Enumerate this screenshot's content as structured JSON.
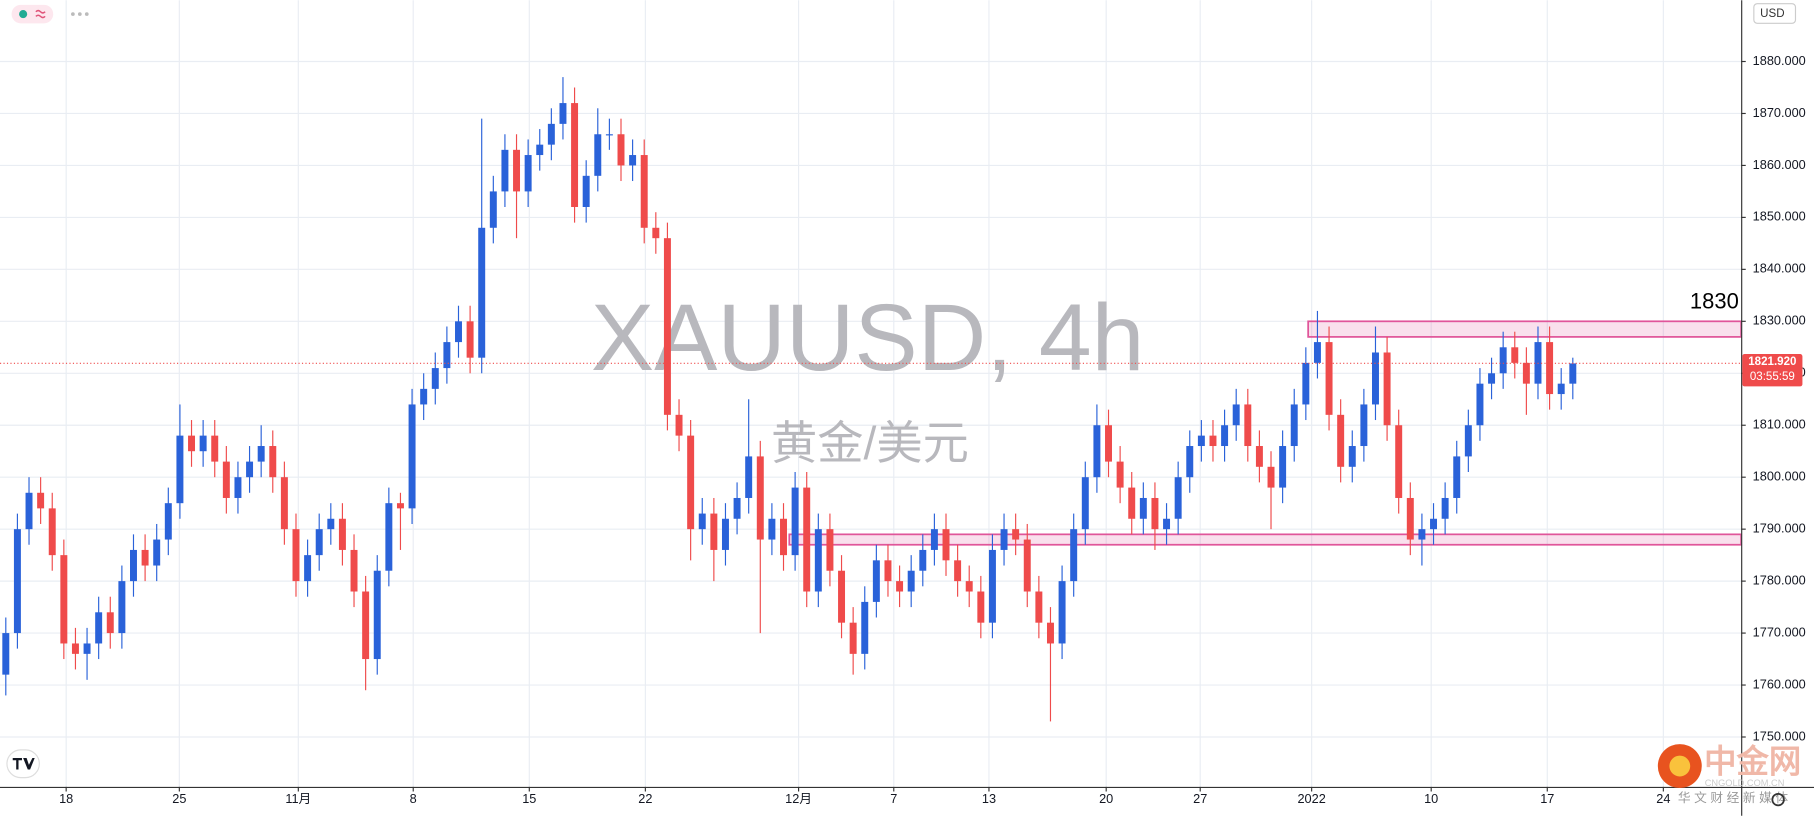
{
  "chart_data": {
    "type": "candlestick",
    "title": "XAUUSD, 4h",
    "subtitle": "黄金/美元",
    "currency": "USD",
    "annotation": "1830",
    "up_color": "#2a62d9",
    "down_color": "#ef4b4b",
    "xlim": [
      0,
      150
    ],
    "ylim": [
      1740.4,
      1891.8
    ],
    "xticks": [
      {
        "value": 5.7,
        "label": "18"
      },
      {
        "value": 15.45,
        "label": "25"
      },
      {
        "value": 25.7,
        "label": "11月"
      },
      {
        "value": 35.6,
        "label": "8"
      },
      {
        "value": 45.6,
        "label": "15"
      },
      {
        "value": 55.6,
        "label": "22"
      },
      {
        "value": 68.8,
        "label": "12月"
      },
      {
        "value": 77,
        "label": "7"
      },
      {
        "value": 85.2,
        "label": "13"
      },
      {
        "value": 95.3,
        "label": "20"
      },
      {
        "value": 103.4,
        "label": "27"
      },
      {
        "value": 113,
        "label": "2022"
      },
      {
        "value": 123.3,
        "label": "10"
      },
      {
        "value": 133.3,
        "label": "17"
      },
      {
        "value": 143.3,
        "label": "24"
      }
    ],
    "yticks": [
      {
        "value": 1750,
        "label": "1750.000"
      },
      {
        "value": 1760,
        "label": "1760.000"
      },
      {
        "value": 1770,
        "label": "1770.000"
      },
      {
        "value": 1780,
        "label": "1780.000"
      },
      {
        "value": 1790,
        "label": "1790.000"
      },
      {
        "value": 1800,
        "label": "1800.000"
      },
      {
        "value": 1810,
        "label": "1810.000"
      },
      {
        "value": 1820,
        "label": "1820.000"
      },
      {
        "value": 1830,
        "label": "1830.000"
      },
      {
        "value": 1840,
        "label": "1840.000"
      },
      {
        "value": 1850,
        "label": "1850.000"
      },
      {
        "value": 1860,
        "label": "1860.000"
      },
      {
        "value": 1870,
        "label": "1870.000"
      },
      {
        "value": 1880,
        "label": "1880.000"
      }
    ],
    "grid": true,
    "last_price": {
      "value": 1821.92,
      "label": "1821.920"
    },
    "countdown": "03:55:59",
    "zones": [
      {
        "low": 1827,
        "high": 1830,
        "from": 112.7
      },
      {
        "low": 1787,
        "high": 1789,
        "from": 68
      }
    ],
    "zone_color": "#e0559a",
    "x": [
      0.5,
      1.5,
      2.5,
      3.5,
      4.5,
      5.5,
      6.5,
      7.5,
      8.5,
      9.5,
      10.5,
      11.5,
      12.5,
      13.5,
      14.5,
      15.5,
      16.5,
      17.5,
      18.5,
      19.5,
      20.5,
      21.5,
      22.5,
      23.5,
      24.5,
      25.5,
      26.5,
      27.5,
      28.5,
      29.5,
      30.5,
      31.5,
      32.5,
      33.5,
      34.5,
      35.5,
      36.5,
      37.5,
      38.5,
      39.5,
      40.5,
      41.5,
      42.5,
      43.5,
      44.5,
      45.5,
      46.5,
      47.5,
      48.5,
      49.5,
      50.5,
      51.5,
      52.5,
      53.5,
      54.5,
      55.5,
      56.5,
      57.5,
      58.5,
      59.5,
      60.5,
      61.5,
      62.5,
      63.5,
      64.5,
      65.5,
      66.5,
      67.5,
      68.5,
      69.5,
      70.5,
      71.5,
      72.5,
      73.5,
      74.5,
      75.5,
      76.5,
      77.5,
      78.5,
      79.5,
      80.5,
      81.5,
      82.5,
      83.5,
      84.5,
      85.5,
      86.5,
      87.5,
      88.5,
      89.5,
      90.5,
      91.5,
      92.5,
      93.5,
      94.5,
      95.5,
      96.5,
      97.5,
      98.5,
      99.5,
      100.5,
      101.5,
      102.5,
      103.5,
      104.5,
      105.5,
      106.5,
      107.5,
      108.5,
      109.5,
      110.5,
      111.5,
      112.5,
      113.5,
      114.5,
      115.5,
      116.5,
      117.5,
      118.5,
      119.5,
      120.5,
      121.5,
      122.5,
      123.5,
      124.5,
      125.5,
      126.5,
      127.5,
      128.5,
      129.5,
      130.5,
      131.5,
      132.5,
      133.5,
      134.5,
      135.5
    ],
    "open": [
      1762,
      1770,
      1790,
      1797,
      1794,
      1785,
      1768,
      1766,
      1768,
      1774,
      1770,
      1780,
      1786,
      1783,
      1788,
      1795,
      1808,
      1805,
      1808,
      1803,
      1796,
      1800,
      1803,
      1806,
      1800,
      1790,
      1780,
      1785,
      1790,
      1792,
      1786,
      1778,
      1765,
      1782,
      1795,
      1794,
      1814,
      1817,
      1821,
      1826,
      1830,
      1823,
      1848,
      1855,
      1863,
      1855,
      1862,
      1864,
      1868,
      1872,
      1852,
      1858,
      1866,
      1866,
      1860,
      1862,
      1848,
      1846,
      1812,
      1808,
      1790,
      1793,
      1786,
      1792,
      1796,
      1804,
      1788,
      1792,
      1785,
      1798,
      1778,
      1790,
      1782,
      1772,
      1766,
      1776,
      1784,
      1780,
      1778,
      1782,
      1786,
      1790,
      1784,
      1780,
      1778,
      1772,
      1786,
      1790,
      1788,
      1778,
      1772,
      1768,
      1780,
      1790,
      1800,
      1810,
      1803,
      1798,
      1792,
      1796,
      1790,
      1792,
      1800,
      1806,
      1808,
      1806,
      1810,
      1814,
      1806,
      1802,
      1798,
      1806,
      1814,
      1822,
      1826,
      1812,
      1802,
      1806,
      1814,
      1824,
      1810,
      1796,
      1788,
      1790,
      1792,
      1796,
      1804,
      1810,
      1818,
      1820,
      1825,
      1822,
      1818,
      1826,
      1816,
      1818
    ],
    "high": [
      1773,
      1793,
      1800,
      1800,
      1797,
      1788,
      1771,
      1771,
      1777,
      1777,
      1783,
      1789,
      1789,
      1791,
      1798,
      1814,
      1811,
      1811,
      1811,
      1806,
      1803,
      1806,
      1810,
      1809,
      1803,
      1793,
      1788,
      1793,
      1795,
      1795,
      1789,
      1781,
      1785,
      1798,
      1797,
      1817,
      1820,
      1824,
      1829,
      1833,
      1833,
      1869,
      1858,
      1866,
      1866,
      1865,
      1867,
      1871,
      1877,
      1875,
      1861,
      1871,
      1869,
      1869,
      1865,
      1865,
      1851,
      1849,
      1815,
      1811,
      1796,
      1796,
      1795,
      1799,
      1815,
      1807,
      1795,
      1795,
      1801,
      1801,
      1793,
      1793,
      1785,
      1775,
      1779,
      1787,
      1787,
      1783,
      1785,
      1789,
      1793,
      1793,
      1787,
      1783,
      1781,
      1789,
      1793,
      1793,
      1791,
      1781,
      1775,
      1783,
      1793,
      1803,
      1814,
      1813,
      1806,
      1801,
      1799,
      1799,
      1795,
      1803,
      1809,
      1811,
      1811,
      1813,
      1817,
      1817,
      1809,
      1805,
      1809,
      1817,
      1825,
      1832,
      1829,
      1815,
      1809,
      1817,
      1829,
      1827,
      1813,
      1799,
      1793,
      1795,
      1799,
      1807,
      1813,
      1821,
      1823,
      1828,
      1828,
      1825,
      1829,
      1829,
      1821,
      1823
    ],
    "low": [
      1758,
      1767,
      1787,
      1791,
      1782,
      1765,
      1763,
      1761,
      1765,
      1767,
      1767,
      1777,
      1780,
      1780,
      1785,
      1792,
      1802,
      1802,
      1800,
      1793,
      1793,
      1797,
      1800,
      1797,
      1787,
      1777,
      1777,
      1782,
      1787,
      1783,
      1775,
      1759,
      1762,
      1779,
      1786,
      1791,
      1811,
      1814,
      1818,
      1823,
      1820,
      1820,
      1845,
      1852,
      1846,
      1852,
      1859,
      1861,
      1865,
      1849,
      1849,
      1855,
      1863,
      1857,
      1857,
      1845,
      1843,
      1809,
      1805,
      1784,
      1787,
      1780,
      1783,
      1789,
      1793,
      1770,
      1785,
      1782,
      1782,
      1775,
      1775,
      1779,
      1769,
      1762,
      1763,
      1773,
      1777,
      1775,
      1775,
      1779,
      1783,
      1781,
      1777,
      1775,
      1769,
      1769,
      1783,
      1785,
      1775,
      1769,
      1753,
      1765,
      1777,
      1787,
      1797,
      1800,
      1795,
      1789,
      1789,
      1786,
      1787,
      1789,
      1797,
      1803,
      1803,
      1803,
      1807,
      1803,
      1799,
      1790,
      1795,
      1803,
      1811,
      1819,
      1809,
      1799,
      1799,
      1803,
      1811,
      1807,
      1793,
      1785,
      1783,
      1787,
      1789,
      1793,
      1801,
      1807,
      1815,
      1817,
      1819,
      1812,
      1815,
      1813,
      1813,
      1815
    ],
    "close": [
      1770,
      1790,
      1797,
      1794,
      1785,
      1768,
      1766,
      1768,
      1774,
      1770,
      1780,
      1786,
      1783,
      1788,
      1795,
      1808,
      1805,
      1808,
      1803,
      1796,
      1800,
      1803,
      1806,
      1800,
      1790,
      1780,
      1785,
      1790,
      1792,
      1786,
      1778,
      1765,
      1782,
      1795,
      1794,
      1814,
      1817,
      1821,
      1826,
      1830,
      1823,
      1848,
      1855,
      1863,
      1855,
      1862,
      1864,
      1868,
      1872,
      1852,
      1858,
      1866,
      1866,
      1860,
      1862,
      1848,
      1846,
      1812,
      1808,
      1790,
      1793,
      1786,
      1792,
      1796,
      1804,
      1788,
      1792,
      1785,
      1798,
      1778,
      1790,
      1782,
      1772,
      1766,
      1776,
      1784,
      1780,
      1778,
      1782,
      1786,
      1790,
      1784,
      1780,
      1778,
      1772,
      1786,
      1790,
      1788,
      1778,
      1772,
      1768,
      1780,
      1790,
      1800,
      1810,
      1803,
      1798,
      1792,
      1796,
      1790,
      1792,
      1800,
      1806,
      1808,
      1806,
      1810,
      1814,
      1806,
      1802,
      1798,
      1806,
      1814,
      1822,
      1826,
      1812,
      1802,
      1806,
      1814,
      1824,
      1810,
      1796,
      1788,
      1790,
      1792,
      1796,
      1804,
      1810,
      1818,
      1820,
      1825,
      1822,
      1818,
      1826,
      1816,
      1818,
      1821.9
    ]
  },
  "branding": {
    "name": "中金网",
    "domain": "CNGOLD.COM.CN",
    "slogan": "华 文 财 经 新 媒 体"
  }
}
